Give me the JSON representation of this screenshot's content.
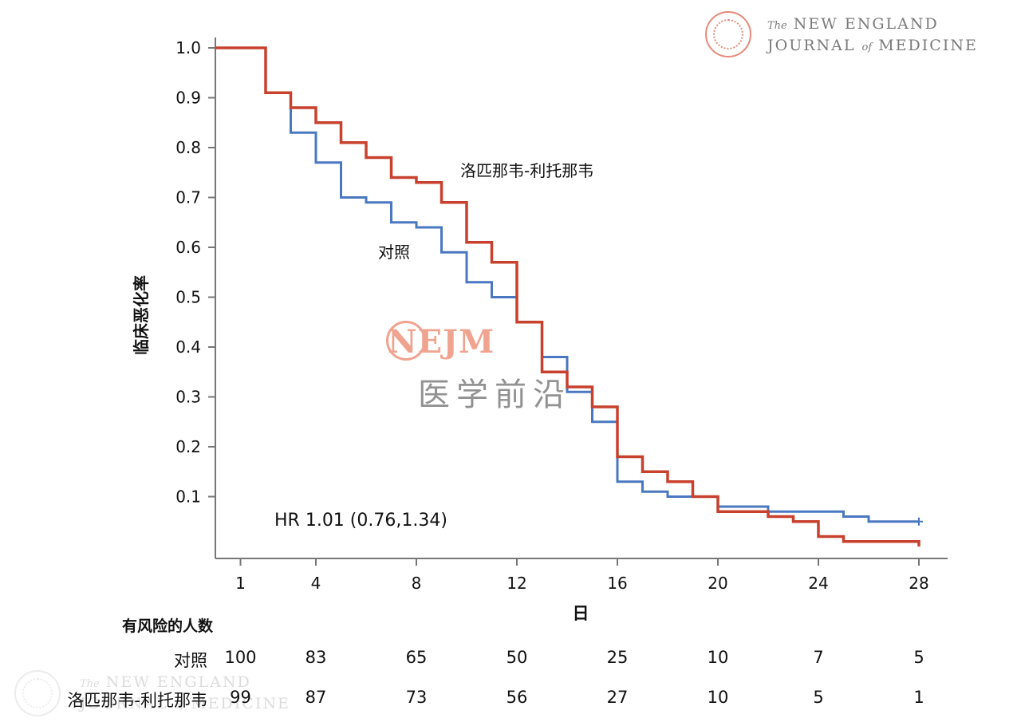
{
  "header": {
    "journal_line1_prefix": "The",
    "journal_line1": "NEW ENGLAND",
    "journal_line2_a": "JOURNAL",
    "journal_line2_of": "of",
    "journal_line2_b": "MEDICINE",
    "seal_text": "NEJM seal"
  },
  "watermark": {
    "logo_text": "NEJM",
    "cn_text": "医学前沿"
  },
  "chart_data": {
    "type": "line",
    "subtype": "step / Kaplan-Meier",
    "title": "",
    "xlabel": "日",
    "ylabel": "临床恶化率",
    "x_ticks": [
      1,
      4,
      8,
      12,
      16,
      20,
      24,
      28
    ],
    "y_ticks": [
      "0.1",
      "0.2",
      "0.3",
      "0.4",
      "0.5",
      "0.6",
      "0.7",
      "0.8",
      "0.9",
      "1.0"
    ],
    "xlim": [
      0,
      29
    ],
    "ylim": [
      0,
      1.0
    ],
    "grid": false,
    "annotation": "HR 1.01 (0.76,1.34)",
    "series": [
      {
        "name": "洛匹那韦-利托那韦",
        "color": "#c8412e",
        "steps": [
          [
            0,
            1.0
          ],
          [
            2,
            0.91
          ],
          [
            3,
            0.88
          ],
          [
            4,
            0.85
          ],
          [
            5,
            0.81
          ],
          [
            6,
            0.78
          ],
          [
            7,
            0.74
          ],
          [
            8,
            0.73
          ],
          [
            9,
            0.69
          ],
          [
            10,
            0.61
          ],
          [
            11,
            0.57
          ],
          [
            12,
            0.45
          ],
          [
            13,
            0.35
          ],
          [
            14,
            0.32
          ],
          [
            15,
            0.28
          ],
          [
            16,
            0.18
          ],
          [
            17,
            0.15
          ],
          [
            18,
            0.13
          ],
          [
            19,
            0.1
          ],
          [
            20,
            0.07
          ],
          [
            22,
            0.06
          ],
          [
            23,
            0.05
          ],
          [
            24,
            0.02
          ],
          [
            25,
            0.01
          ],
          [
            28,
            0.0
          ]
        ]
      },
      {
        "name": "对照",
        "color": "#4a78c0",
        "steps": [
          [
            0,
            1.0
          ],
          [
            2,
            0.91
          ],
          [
            3,
            0.83
          ],
          [
            4,
            0.77
          ],
          [
            5,
            0.7
          ],
          [
            6,
            0.69
          ],
          [
            7,
            0.65
          ],
          [
            8,
            0.64
          ],
          [
            9,
            0.59
          ],
          [
            10,
            0.53
          ],
          [
            11,
            0.5
          ],
          [
            12,
            0.45
          ],
          [
            13,
            0.38
          ],
          [
            14,
            0.31
          ],
          [
            15,
            0.25
          ],
          [
            16,
            0.13
          ],
          [
            17,
            0.11
          ],
          [
            18,
            0.1
          ],
          [
            20,
            0.08
          ],
          [
            22,
            0.07
          ],
          [
            25,
            0.06
          ],
          [
            26,
            0.05
          ],
          [
            28,
            0.05
          ]
        ]
      }
    ],
    "number_at_risk": {
      "title": "有风险的人数",
      "days": [
        1,
        4,
        8,
        12,
        16,
        20,
        24,
        28
      ],
      "rows": [
        {
          "label": "对照",
          "values": [
            "100",
            "83",
            "65",
            "50",
            "25",
            "10",
            "7",
            "5"
          ]
        },
        {
          "label": "洛匹那韦-利托那韦",
          "values": [
            "99",
            "87",
            "73",
            "56",
            "27",
            "10",
            "5",
            "1"
          ]
        }
      ]
    }
  }
}
